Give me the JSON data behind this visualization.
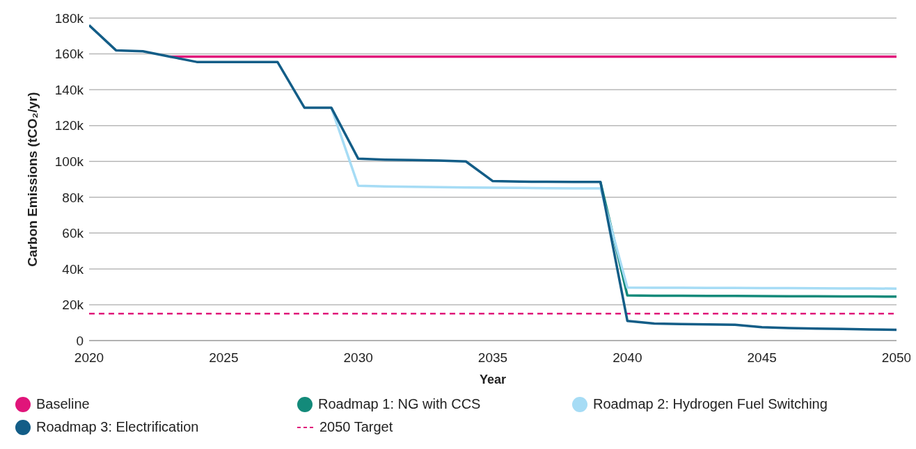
{
  "chart_data": {
    "type": "line",
    "xlabel": "Year",
    "ylabel": "Carbon Emissions (tCO₂/yr)",
    "x": [
      2020,
      2021,
      2022,
      2023,
      2024,
      2025,
      2026,
      2027,
      2028,
      2029,
      2030,
      2031,
      2032,
      2033,
      2034,
      2035,
      2036,
      2037,
      2038,
      2039,
      2040,
      2041,
      2042,
      2043,
      2044,
      2045,
      2046,
      2047,
      2048,
      2049,
      2050
    ],
    "series": [
      {
        "name": "Baseline",
        "color": "#e0157a",
        "values": [
          null,
          null,
          null,
          158500,
          158500,
          158500,
          158500,
          158500,
          158500,
          158500,
          158500,
          158500,
          158500,
          158500,
          158500,
          158500,
          158500,
          158500,
          158500,
          158500,
          158500,
          158500,
          158500,
          158500,
          158500,
          158500,
          158500,
          158500,
          158500,
          158500,
          158500
        ]
      },
      {
        "name": "Roadmap 1: NG with CCS",
        "color": "#138a7a",
        "values": [
          null,
          null,
          null,
          null,
          null,
          null,
          null,
          null,
          null,
          null,
          null,
          null,
          null,
          null,
          null,
          null,
          null,
          null,
          null,
          88500,
          25200,
          25000,
          25000,
          24900,
          24900,
          24800,
          24700,
          24700,
          24600,
          24600,
          24500
        ]
      },
      {
        "name": "Roadmap 2: Hydrogen Fuel Switching",
        "color": "#a6dcf5",
        "values": [
          null,
          null,
          null,
          null,
          null,
          null,
          null,
          null,
          null,
          130000,
          86400,
          86000,
          85800,
          85600,
          85400,
          85300,
          85200,
          85100,
          85000,
          85000,
          29600,
          29500,
          29500,
          29400,
          29400,
          29300,
          29300,
          29200,
          29100,
          29100,
          29000
        ]
      },
      {
        "name": "Roadmap 3: Electrification",
        "color": "#135d87",
        "values": [
          176000,
          162000,
          161500,
          158500,
          155500,
          155500,
          155500,
          155500,
          130000,
          130000,
          101500,
          101000,
          100800,
          100500,
          100000,
          89000,
          88700,
          88600,
          88500,
          88500,
          11000,
          9500,
          9200,
          9000,
          8800,
          7500,
          7000,
          6700,
          6500,
          6200,
          6000
        ]
      }
    ],
    "ref_lines": [
      {
        "axis": "y",
        "value": 15000,
        "label": "2050 Target",
        "color": "#e0157a",
        "line_style": "dashed"
      }
    ],
    "xlim": [
      2020,
      2050
    ],
    "xticks": [
      2020,
      2025,
      2030,
      2035,
      2040,
      2045,
      2050
    ],
    "ylim": [
      0,
      180000
    ],
    "yticks": [
      0,
      {
        "value": 20000,
        "label": "20k"
      },
      {
        "value": 40000,
        "label": "40k"
      },
      {
        "value": 60000,
        "label": "60k"
      },
      {
        "value": 80000,
        "label": "80k"
      },
      {
        "value": 100000,
        "label": "100k"
      },
      {
        "value": 120000,
        "label": "120k"
      },
      {
        "value": 140000,
        "label": "140k"
      },
      {
        "value": 160000,
        "label": "160k"
      },
      {
        "value": 180000,
        "label": "180k"
      }
    ],
    "grid": "y",
    "legend": "bottom",
    "marker": "none",
    "line_style": "solid"
  }
}
